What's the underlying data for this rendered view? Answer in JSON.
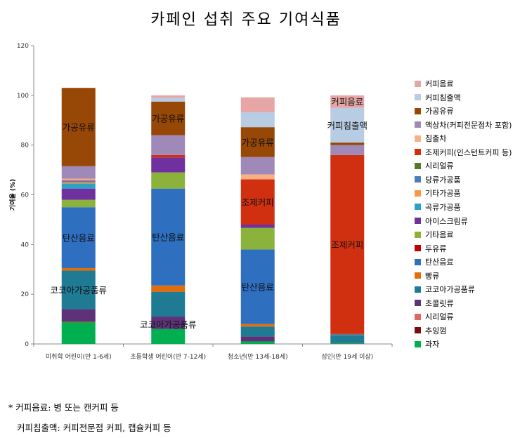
{
  "title": "카페인 섭취 주요 기여식품",
  "notes": {
    "line1": "* 커피음료: 병 또는 캔커피 등",
    "line2": "커피침출액: 커피전문점 커피, 캡슐커피 등"
  },
  "legend_order": [
    "커피음료",
    "커피침출액",
    "가공유류",
    "액상차(커피전문점차 포함)",
    "침출차",
    "조제커피(인스턴트커피 등)",
    "시리얼류",
    "당류가공품",
    "기타가공품",
    "곡류가공품",
    "아이스크림류",
    "기타음료",
    "두유류",
    "탄산음료",
    "빵류",
    "코코아가공품류",
    "초콜릿류",
    "시리얼류",
    "추잉껌",
    "과자"
  ],
  "chart_data": {
    "type": "bar",
    "stacked": true,
    "title": "카페인 섭취 주요 기여식품",
    "xlabel": "",
    "ylabel": "기여율 (%)",
    "ylim": [
      0,
      120
    ],
    "yticks": [
      "0",
      "20",
      "40",
      "60",
      "80",
      "100",
      "120"
    ],
    "grid": false,
    "legend_position": "right",
    "categories": [
      "미취학 어린이(만 1-6세)",
      "초등학생 어린이(만 7-12세)",
      "청소년(만 13세-18세)",
      "성인(만 19세 이상)"
    ],
    "series": [
      {
        "name": "과자",
        "color": "#00b050",
        "values": [
          8.5,
          6,
          1,
          0.3
        ]
      },
      {
        "name": "추잉껌",
        "color": "#7b0c0c",
        "values": [
          0,
          0,
          0,
          0
        ]
      },
      {
        "name": "시리얼류",
        "color": "#4f7b28",
        "values": [
          0.5,
          0,
          0,
          0
        ]
      },
      {
        "name": "초콜릿류",
        "color": "#5d3278",
        "values": [
          5,
          5,
          2,
          0.2
        ]
      },
      {
        "name": "코코아가공품류",
        "color": "#1f7a94",
        "values": [
          15.5,
          10,
          4,
          3
        ]
      },
      {
        "name": "빵류",
        "color": "#e46c0a",
        "values": [
          1,
          2.5,
          1,
          0.2
        ]
      },
      {
        "name": "탄산음료",
        "color": "#2e6fbf",
        "values": [
          24.5,
          39,
          30,
          0.3
        ]
      },
      {
        "name": "두유류",
        "color": "#c00000",
        "values": [
          0,
          0,
          0,
          0
        ]
      },
      {
        "name": "기타음료",
        "color": "#8bb33c",
        "values": [
          3,
          6.5,
          8.7,
          0
        ]
      },
      {
        "name": "아이스크림류",
        "color": "#7030a0",
        "values": [
          4.5,
          6,
          1.3,
          0
        ]
      },
      {
        "name": "곡류가공품",
        "color": "#2aa3c4",
        "values": [
          2,
          0,
          0,
          0
        ]
      },
      {
        "name": "기타가공품",
        "color": "#f79646",
        "values": [
          0.5,
          0,
          0,
          0
        ]
      },
      {
        "name": "당류가공품",
        "color": "#4a7ebb",
        "values": [
          0.5,
          0,
          0,
          0
        ]
      },
      {
        "name": "시리얼류",
        "color": "#e06666",
        "values": [
          0.5,
          0,
          0,
          0
        ]
      },
      {
        "name": "조제커피(인스턴트커피 등)",
        "color": "#d03010",
        "values": [
          0,
          1,
          18.2,
          72
        ]
      },
      {
        "name": "침출차",
        "color": "#fab085",
        "values": [
          0.5,
          0,
          2,
          0
        ]
      },
      {
        "name": "액상차(커피전문점차 포함)",
        "color": "#9f89b8",
        "values": [
          5,
          8,
          7,
          4
        ]
      },
      {
        "name": "가공유류",
        "color": "#974706",
        "values": [
          31.5,
          13.5,
          12,
          1
        ]
      },
      {
        "name": "커피침출액",
        "color": "#b8cce4",
        "values": [
          0,
          1.5,
          6,
          14
        ]
      },
      {
        "name": "커피음료",
        "color": "#e6a6a6",
        "values": [
          0,
          1,
          6,
          5
        ]
      }
    ],
    "annotations": [
      {
        "text": "가공유류",
        "category": 0,
        "series": "가공유류"
      },
      {
        "text": "탄산음료",
        "category": 0,
        "series": "탄산음료"
      },
      {
        "text": "코코아가공품류",
        "category": 0,
        "series": "코코아가공품류"
      },
      {
        "text": "가공유류",
        "category": 1,
        "series": "가공유류"
      },
      {
        "text": "탄산음료",
        "category": 1,
        "series": "탄산음료"
      },
      {
        "text": "코코아가공품류",
        "category": 1,
        "series": "코코아가공품류",
        "below": true
      },
      {
        "text": "가공유류",
        "category": 2,
        "series": "가공유류"
      },
      {
        "text": "조제커피",
        "category": 2,
        "series": "조제커피(인스턴트커피 등)"
      },
      {
        "text": "탄산음료",
        "category": 2,
        "series": "탄산음료"
      },
      {
        "text": "커피음료",
        "category": 3,
        "series": "커피음료"
      },
      {
        "text": "커피침출액",
        "category": 3,
        "series": "커피침출액"
      },
      {
        "text": "조제커피",
        "category": 3,
        "series": "조제커피(인스턴트커피 등)"
      }
    ]
  }
}
